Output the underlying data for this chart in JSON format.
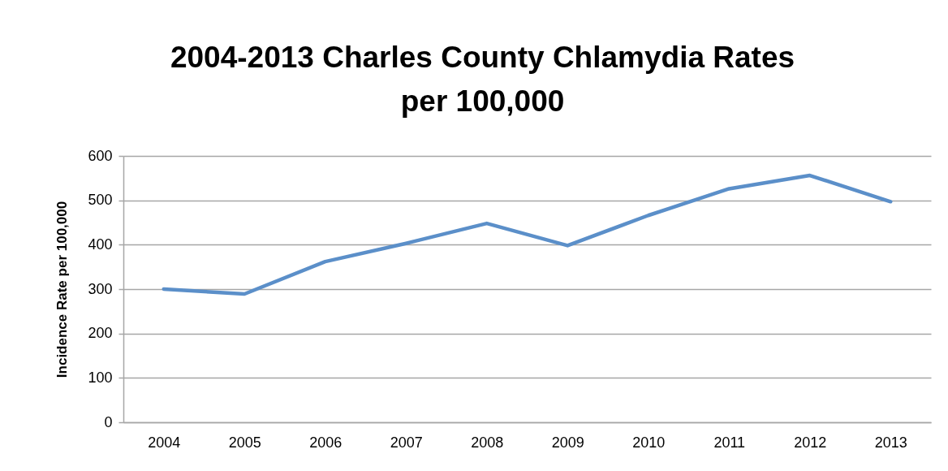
{
  "chart_data": {
    "type": "line",
    "title": "2004-2013 Charles County Chlamydia Rates per 100,000",
    "ylabel": "Incidence Rate per 100,000",
    "categories": [
      "2004",
      "2005",
      "2006",
      "2007",
      "2008",
      "2009",
      "2010",
      "2011",
      "2012",
      "2013"
    ],
    "series": [
      {
        "color": "#5b8fc9",
        "values": [
          300,
          289,
          362,
          403,
          448,
          398,
          466,
          526,
          556,
          497
        ]
      }
    ],
    "ylim": [
      0,
      600
    ],
    "yticks": [
      0,
      100,
      200,
      300,
      400,
      500,
      600
    ],
    "grid": "y"
  }
}
